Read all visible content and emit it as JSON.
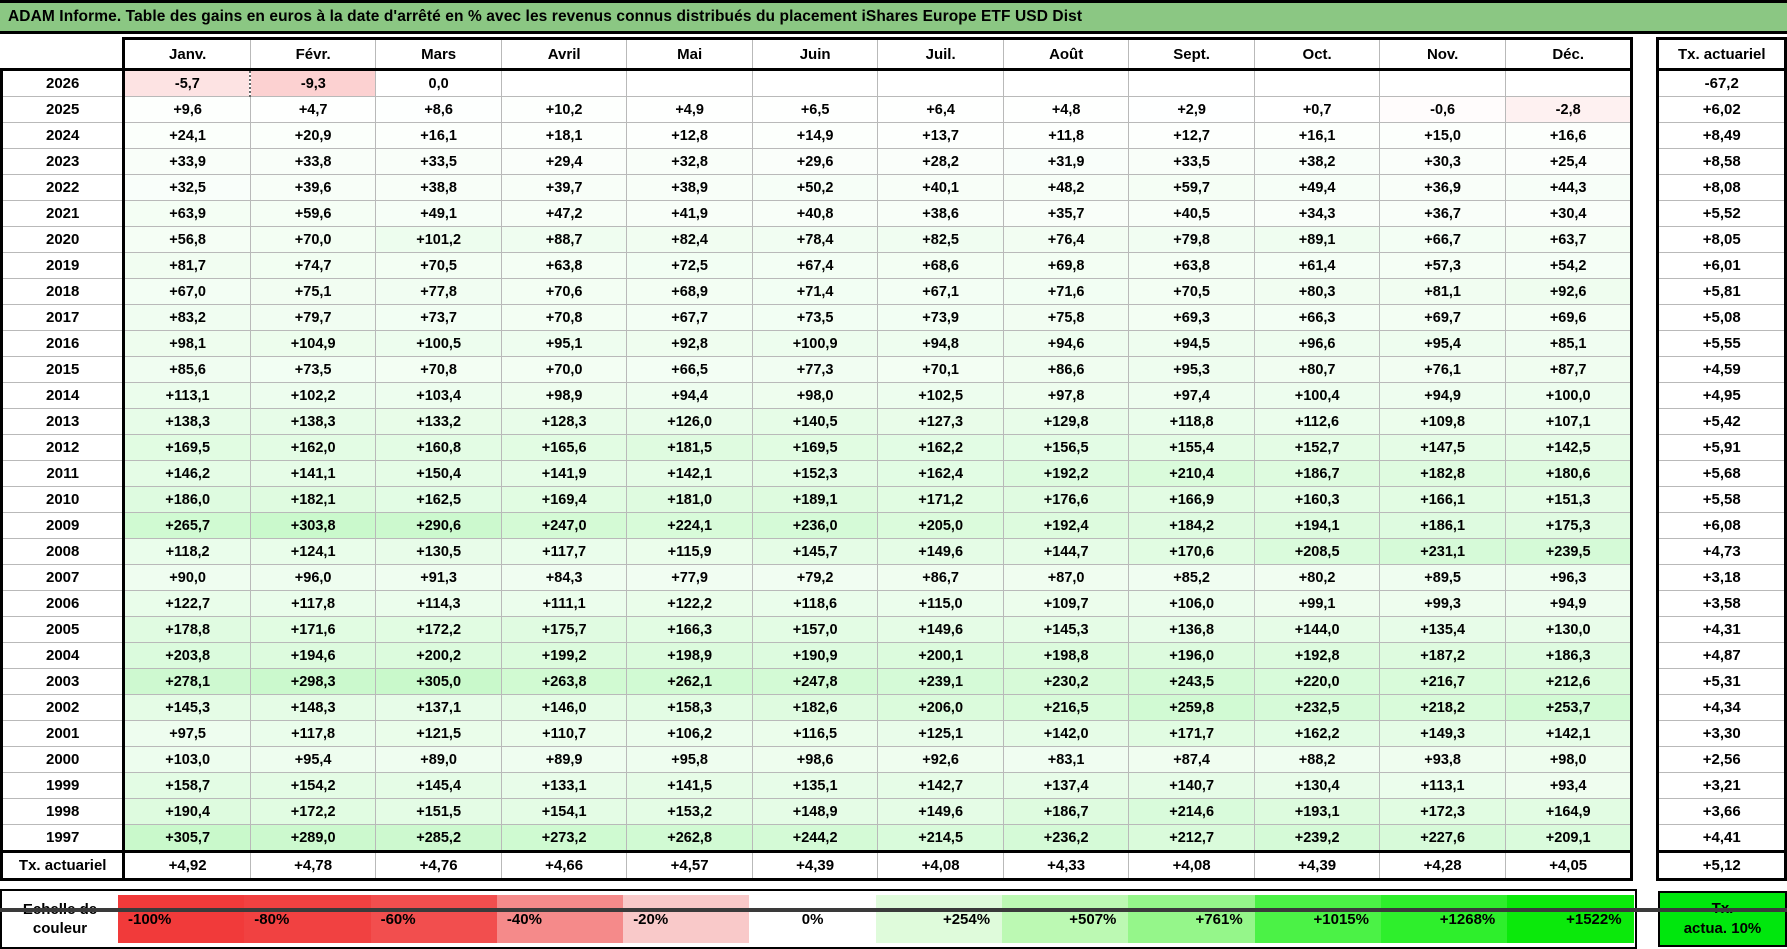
{
  "title": "ADAM Informe. Table des gains en euros à la date d'arrêté en % avec les revenus connus distribués du placement iShares Europe ETF USD Dist",
  "table": {
    "months": [
      "Janv.",
      "Févr.",
      "Mars",
      "Avril",
      "Mai",
      "Juin",
      "Juil.",
      "Août",
      "Sept.",
      "Oct.",
      "Nov.",
      "Déc."
    ],
    "tx_header": "Tx. actuariel",
    "rows": [
      {
        "year": "2026",
        "cells": [
          "-5,7",
          "-9,3",
          "0,0",
          "",
          "",
          "",
          "",
          "",
          "",
          "",
          "",
          ""
        ],
        "tx": "-67,2"
      },
      {
        "year": "2025",
        "cells": [
          "+9,6",
          "+4,7",
          "+8,6",
          "+10,2",
          "+4,9",
          "+6,5",
          "+6,4",
          "+4,8",
          "+2,9",
          "+0,7",
          "-0,6",
          "-2,8"
        ],
        "tx": "+6,02"
      },
      {
        "year": "2024",
        "cells": [
          "+24,1",
          "+20,9",
          "+16,1",
          "+18,1",
          "+12,8",
          "+14,9",
          "+13,7",
          "+11,8",
          "+12,7",
          "+16,1",
          "+15,0",
          "+16,6"
        ],
        "tx": "+8,49"
      },
      {
        "year": "2023",
        "cells": [
          "+33,9",
          "+33,8",
          "+33,5",
          "+29,4",
          "+32,8",
          "+29,6",
          "+28,2",
          "+31,9",
          "+33,5",
          "+38,2",
          "+30,3",
          "+25,4"
        ],
        "tx": "+8,58"
      },
      {
        "year": "2022",
        "cells": [
          "+32,5",
          "+39,6",
          "+38,8",
          "+39,7",
          "+38,9",
          "+50,2",
          "+40,1",
          "+48,2",
          "+59,7",
          "+49,4",
          "+36,9",
          "+44,3"
        ],
        "tx": "+8,08"
      },
      {
        "year": "2021",
        "cells": [
          "+63,9",
          "+59,6",
          "+49,1",
          "+47,2",
          "+41,9",
          "+40,8",
          "+38,6",
          "+35,7",
          "+40,5",
          "+34,3",
          "+36,7",
          "+30,4"
        ],
        "tx": "+5,52"
      },
      {
        "year": "2020",
        "cells": [
          "+56,8",
          "+70,0",
          "+101,2",
          "+88,7",
          "+82,4",
          "+78,4",
          "+82,5",
          "+76,4",
          "+79,8",
          "+89,1",
          "+66,7",
          "+63,7"
        ],
        "tx": "+8,05"
      },
      {
        "year": "2019",
        "cells": [
          "+81,7",
          "+74,7",
          "+70,5",
          "+63,8",
          "+72,5",
          "+67,4",
          "+68,6",
          "+69,8",
          "+63,8",
          "+61,4",
          "+57,3",
          "+54,2"
        ],
        "tx": "+6,01"
      },
      {
        "year": "2018",
        "cells": [
          "+67,0",
          "+75,1",
          "+77,8",
          "+70,6",
          "+68,9",
          "+71,4",
          "+67,1",
          "+71,6",
          "+70,5",
          "+80,3",
          "+81,1",
          "+92,6"
        ],
        "tx": "+5,81"
      },
      {
        "year": "2017",
        "cells": [
          "+83,2",
          "+79,7",
          "+73,7",
          "+70,8",
          "+67,7",
          "+73,5",
          "+73,9",
          "+75,8",
          "+69,3",
          "+66,3",
          "+69,7",
          "+69,6"
        ],
        "tx": "+5,08"
      },
      {
        "year": "2016",
        "cells": [
          "+98,1",
          "+104,9",
          "+100,5",
          "+95,1",
          "+92,8",
          "+100,9",
          "+94,8",
          "+94,6",
          "+94,5",
          "+96,6",
          "+95,4",
          "+85,1"
        ],
        "tx": "+5,55"
      },
      {
        "year": "2015",
        "cells": [
          "+85,6",
          "+73,5",
          "+70,8",
          "+70,0",
          "+66,5",
          "+77,3",
          "+70,1",
          "+86,6",
          "+95,3",
          "+80,7",
          "+76,1",
          "+87,7"
        ],
        "tx": "+4,59"
      },
      {
        "year": "2014",
        "cells": [
          "+113,1",
          "+102,2",
          "+103,4",
          "+98,9",
          "+94,4",
          "+98,0",
          "+102,5",
          "+97,8",
          "+97,4",
          "+100,4",
          "+94,9",
          "+100,0"
        ],
        "tx": "+4,95"
      },
      {
        "year": "2013",
        "cells": [
          "+138,3",
          "+138,3",
          "+133,2",
          "+128,3",
          "+126,0",
          "+140,5",
          "+127,3",
          "+129,8",
          "+118,8",
          "+112,6",
          "+109,8",
          "+107,1"
        ],
        "tx": "+5,42"
      },
      {
        "year": "2012",
        "cells": [
          "+169,5",
          "+162,0",
          "+160,8",
          "+165,6",
          "+181,5",
          "+169,5",
          "+162,2",
          "+156,5",
          "+155,4",
          "+152,7",
          "+147,5",
          "+142,5"
        ],
        "tx": "+5,91"
      },
      {
        "year": "2011",
        "cells": [
          "+146,2",
          "+141,1",
          "+150,4",
          "+141,9",
          "+142,1",
          "+152,3",
          "+162,4",
          "+192,2",
          "+210,4",
          "+186,7",
          "+182,8",
          "+180,6"
        ],
        "tx": "+5,68"
      },
      {
        "year": "2010",
        "cells": [
          "+186,0",
          "+182,1",
          "+162,5",
          "+169,4",
          "+181,0",
          "+189,1",
          "+171,2",
          "+176,6",
          "+166,9",
          "+160,3",
          "+166,1",
          "+151,3"
        ],
        "tx": "+5,58"
      },
      {
        "year": "2009",
        "cells": [
          "+265,7",
          "+303,8",
          "+290,6",
          "+247,0",
          "+224,1",
          "+236,0",
          "+205,0",
          "+192,4",
          "+184,2",
          "+194,1",
          "+186,1",
          "+175,3"
        ],
        "tx": "+6,08"
      },
      {
        "year": "2008",
        "cells": [
          "+118,2",
          "+124,1",
          "+130,5",
          "+117,7",
          "+115,9",
          "+145,7",
          "+149,6",
          "+144,7",
          "+170,6",
          "+208,5",
          "+231,1",
          "+239,5"
        ],
        "tx": "+4,73"
      },
      {
        "year": "2007",
        "cells": [
          "+90,0",
          "+96,0",
          "+91,3",
          "+84,3",
          "+77,9",
          "+79,2",
          "+86,7",
          "+87,0",
          "+85,2",
          "+80,2",
          "+89,5",
          "+96,3"
        ],
        "tx": "+3,18"
      },
      {
        "year": "2006",
        "cells": [
          "+122,7",
          "+117,8",
          "+114,3",
          "+111,1",
          "+122,2",
          "+118,6",
          "+115,0",
          "+109,7",
          "+106,0",
          "+99,1",
          "+99,3",
          "+94,9"
        ],
        "tx": "+3,58"
      },
      {
        "year": "2005",
        "cells": [
          "+178,8",
          "+171,6",
          "+172,2",
          "+175,7",
          "+166,3",
          "+157,0",
          "+149,6",
          "+145,3",
          "+136,8",
          "+144,0",
          "+135,4",
          "+130,0"
        ],
        "tx": "+4,31"
      },
      {
        "year": "2004",
        "cells": [
          "+203,8",
          "+194,6",
          "+200,2",
          "+199,2",
          "+198,9",
          "+190,9",
          "+200,1",
          "+198,8",
          "+196,0",
          "+192,8",
          "+187,2",
          "+186,3"
        ],
        "tx": "+4,87"
      },
      {
        "year": "2003",
        "cells": [
          "+278,1",
          "+298,3",
          "+305,0",
          "+263,8",
          "+262,1",
          "+247,8",
          "+239,1",
          "+230,2",
          "+243,5",
          "+220,0",
          "+216,7",
          "+212,6"
        ],
        "tx": "+5,31"
      },
      {
        "year": "2002",
        "cells": [
          "+145,3",
          "+148,3",
          "+137,1",
          "+146,0",
          "+158,3",
          "+182,6",
          "+206,0",
          "+216,5",
          "+259,8",
          "+232,5",
          "+218,2",
          "+253,7"
        ],
        "tx": "+4,34"
      },
      {
        "year": "2001",
        "cells": [
          "+97,5",
          "+117,8",
          "+121,5",
          "+110,7",
          "+106,2",
          "+116,5",
          "+125,1",
          "+142,0",
          "+171,7",
          "+162,2",
          "+149,3",
          "+142,1"
        ],
        "tx": "+3,30"
      },
      {
        "year": "2000",
        "cells": [
          "+103,0",
          "+95,4",
          "+89,0",
          "+89,9",
          "+95,8",
          "+98,6",
          "+92,6",
          "+83,1",
          "+87,4",
          "+88,2",
          "+93,8",
          "+98,0"
        ],
        "tx": "+2,56"
      },
      {
        "year": "1999",
        "cells": [
          "+158,7",
          "+154,2",
          "+145,4",
          "+133,1",
          "+141,5",
          "+135,1",
          "+142,7",
          "+137,4",
          "+140,7",
          "+130,4",
          "+113,1",
          "+93,4"
        ],
        "tx": "+3,21"
      },
      {
        "year": "1998",
        "cells": [
          "+190,4",
          "+172,2",
          "+151,5",
          "+154,1",
          "+153,2",
          "+148,9",
          "+149,6",
          "+186,7",
          "+214,6",
          "+193,1",
          "+172,3",
          "+164,9"
        ],
        "tx": "+3,66"
      },
      {
        "year": "1997",
        "cells": [
          "+305,7",
          "+289,0",
          "+285,2",
          "+273,2",
          "+262,8",
          "+244,2",
          "+214,5",
          "+236,2",
          "+212,7",
          "+239,2",
          "+227,6",
          "+209,1"
        ],
        "tx": "+4,41"
      }
    ],
    "footer": {
      "label": "Tx. actuariel",
      "cells": [
        "+4,92",
        "+4,78",
        "+4,76",
        "+4,66",
        "+4,57",
        "+4,39",
        "+4,08",
        "+4,33",
        "+4,08",
        "+4,39",
        "+4,28",
        "+4,05"
      ],
      "tx": "+5,12"
    }
  },
  "legend": {
    "label": "Echelle de couleur",
    "stops": [
      {
        "label": "-100%",
        "color": "#F13A3A",
        "sign": "neg"
      },
      {
        "label": "-80%",
        "color": "#F14141",
        "sign": "neg"
      },
      {
        "label": "-60%",
        "color": "#F24E4E",
        "sign": "neg"
      },
      {
        "label": "-40%",
        "color": "#F58A8A",
        "sign": "neg"
      },
      {
        "label": "-20%",
        "color": "#F9C9C9",
        "sign": "neg"
      },
      {
        "label": "0%",
        "color": "#FFFFFF",
        "sign": "zero"
      },
      {
        "label": "+254%",
        "color": "#DFFBDB",
        "sign": "pos"
      },
      {
        "label": "+507%",
        "color": "#BCF9B3",
        "sign": "pos"
      },
      {
        "label": "+761%",
        "color": "#95F68A",
        "sign": "pos"
      },
      {
        "label": "+1015%",
        "color": "#4BF246",
        "sign": "pos"
      },
      {
        "label": "+1268%",
        "color": "#2EEF2C",
        "sign": "pos"
      },
      {
        "label": "+1522%",
        "color": "#0BE90B",
        "sign": "pos"
      }
    ],
    "tx_box": {
      "line1": "Tx.",
      "line2": "actua. 10%",
      "color": "#00E70D"
    }
  },
  "colors": {
    "title_bg": "#8BC783",
    "grid_line": "#b9b9b9",
    "positive_anchor": "#00E20A",
    "negative_anchor": "#F13B3B",
    "positive_anchor_value": 1450,
    "negative_anchor_value": 40
  }
}
